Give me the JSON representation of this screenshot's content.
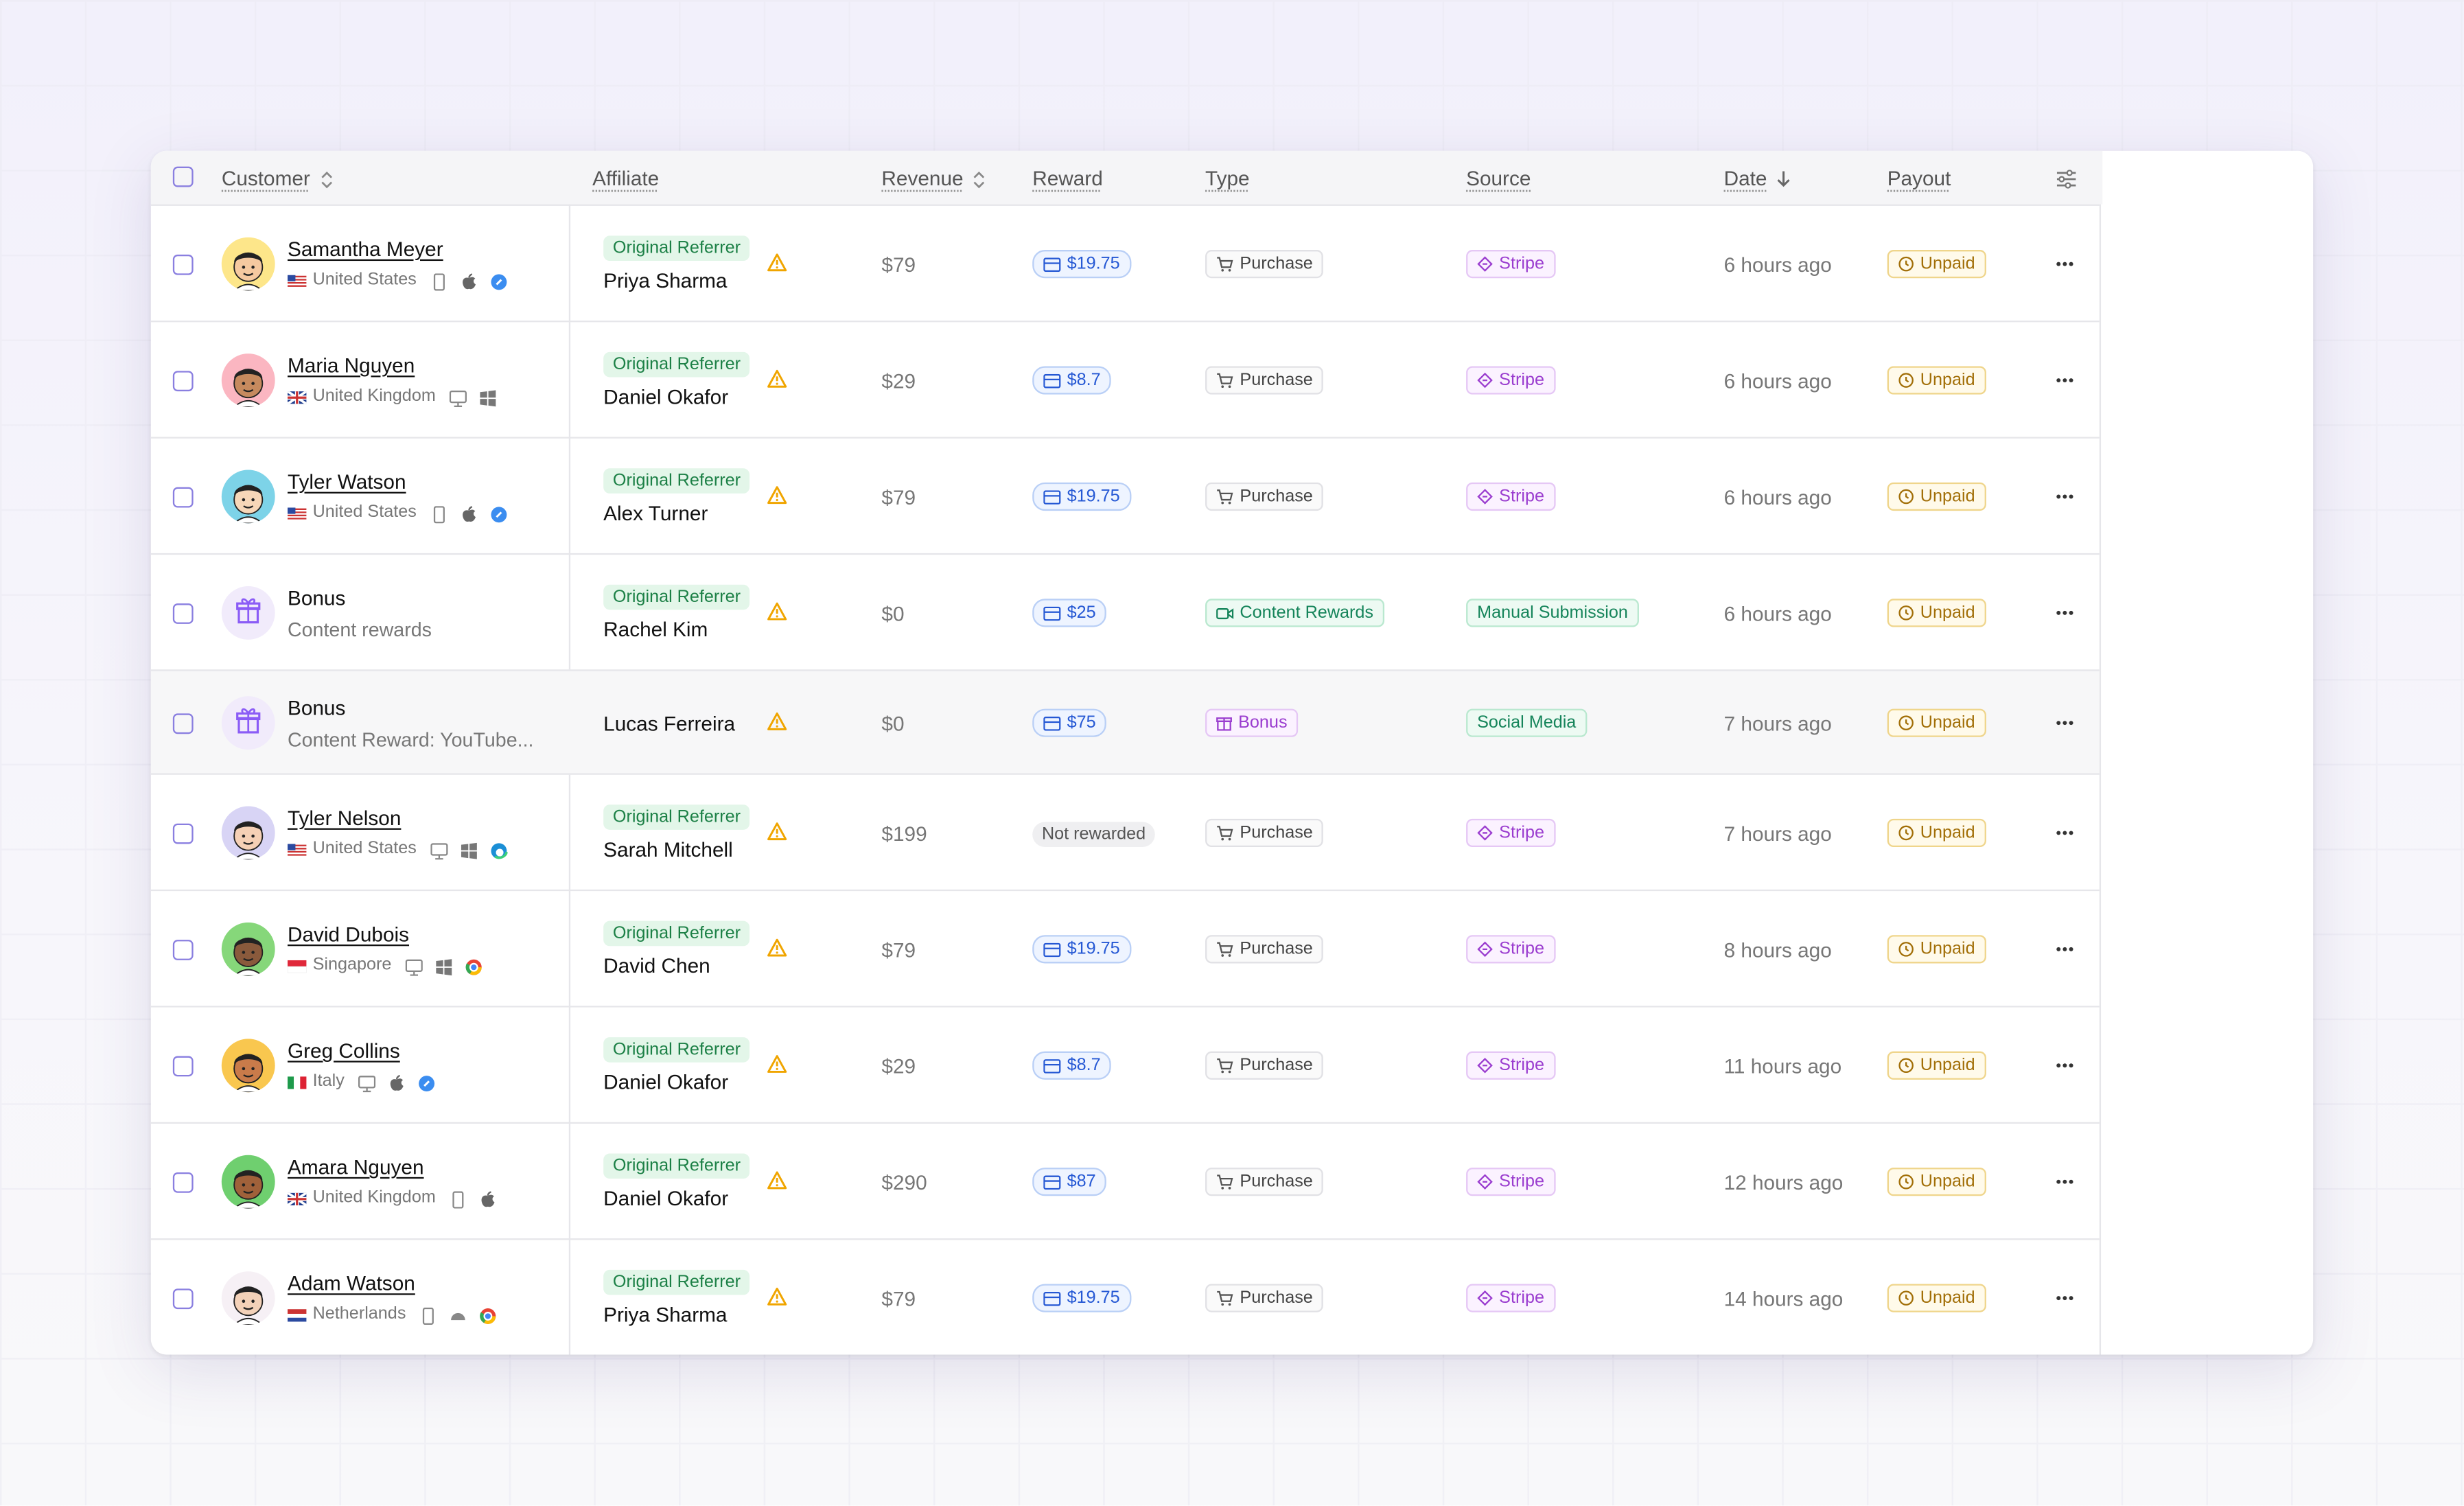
{
  "table": {
    "columns": [
      "Customer",
      "Affiliate",
      "Revenue",
      "Reward",
      "Type",
      "Source",
      "Date",
      "Payout"
    ],
    "rows": [
      {
        "customer": "Samantha Meyer",
        "detail": "United States",
        "badge": "Original Referrer",
        "affiliate": "Priya Sharma",
        "revenue": "$79",
        "reward": "$19.75",
        "type": "Purchase",
        "source": "Stripe",
        "date": "6 hours ago",
        "payout": "Unpaid"
      },
      {
        "customer": "Maria Nguyen",
        "detail": "United Kingdom",
        "badge": "Original Referrer",
        "affiliate": "Daniel Okafor",
        "revenue": "$29",
        "reward": "$8.7",
        "type": "Purchase",
        "source": "Stripe",
        "date": "6 hours ago",
        "payout": "Unpaid"
      },
      {
        "customer": "Tyler Watson",
        "detail": "United States",
        "badge": "Original Referrer",
        "affiliate": "Alex Turner",
        "revenue": "$79",
        "reward": "$19.75",
        "type": "Purchase",
        "source": "Stripe",
        "date": "6 hours ago",
        "payout": "Unpaid"
      },
      {
        "customer": "Bonus",
        "detail": "Content rewards",
        "badge": "Original Referrer",
        "affiliate": "Rachel Kim",
        "revenue": "$0",
        "reward": "$25",
        "type": "Content Rewards",
        "source": "Manual Submission",
        "date": "6 hours ago",
        "payout": "Unpaid"
      },
      {
        "customer": "Bonus",
        "detail": "Content Reward: YouTube...",
        "affiliate": "Lucas Ferreira",
        "revenue": "$0",
        "reward": "$75",
        "type": "Bonus",
        "source": "Social Media",
        "date": "7 hours ago",
        "payout": "Unpaid"
      },
      {
        "customer": "Tyler Nelson",
        "detail": "United States",
        "badge": "Original Referrer",
        "affiliate": "Sarah Mitchell",
        "revenue": "$199",
        "reward": "Not rewarded",
        "type": "Purchase",
        "source": "Stripe",
        "date": "7 hours ago",
        "payout": "Unpaid"
      },
      {
        "customer": "David Dubois",
        "detail": "Singapore",
        "badge": "Original Referrer",
        "affiliate": "David Chen",
        "revenue": "$79",
        "reward": "$19.75",
        "type": "Purchase",
        "source": "Stripe",
        "date": "8 hours ago",
        "payout": "Unpaid"
      },
      {
        "customer": "Greg Collins",
        "detail": "Italy",
        "badge": "Original Referrer",
        "affiliate": "Daniel Okafor",
        "revenue": "$29",
        "reward": "$8.7",
        "type": "Purchase",
        "source": "Stripe",
        "date": "11 hours ago",
        "payout": "Unpaid"
      },
      {
        "customer": "Amara Nguyen",
        "detail": "United Kingdom",
        "badge": "Original Referrer",
        "affiliate": "Daniel Okafor",
        "revenue": "$290",
        "reward": "$87",
        "type": "Purchase",
        "source": "Stripe",
        "date": "12 hours ago",
        "payout": "Unpaid"
      },
      {
        "customer": "Adam Watson",
        "detail": "Netherlands",
        "badge": "Original Referrer",
        "affiliate": "Priya Sharma",
        "revenue": "$79",
        "reward": "$19.75",
        "type": "Purchase",
        "source": "Stripe",
        "date": "14 hours ago",
        "payout": "Unpaid"
      }
    ]
  }
}
